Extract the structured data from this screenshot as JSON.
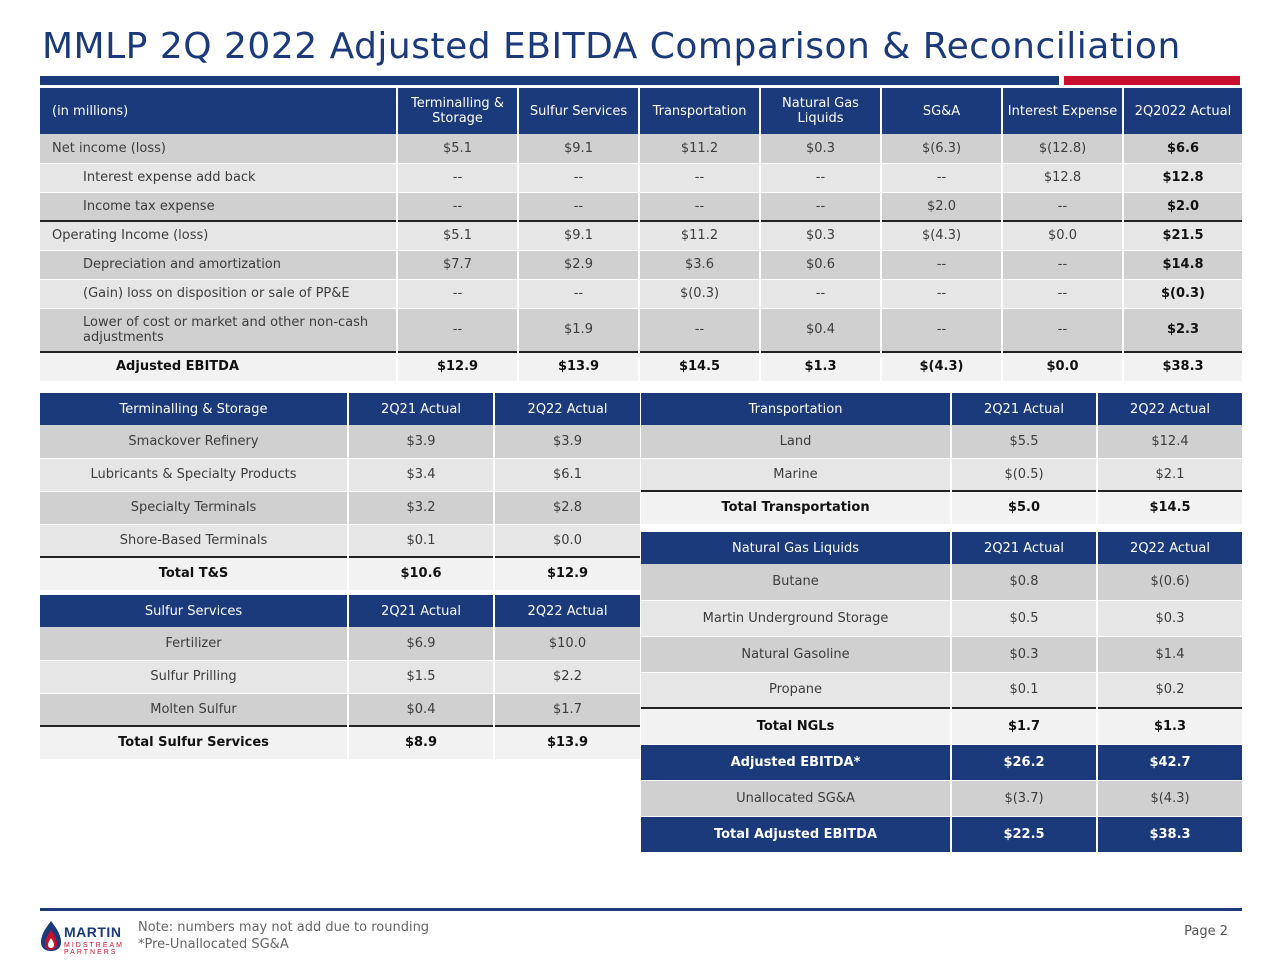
{
  "title": "MMLP 2Q 2022 Adjusted EBITDA Comparison & Reconciliation",
  "main": {
    "headers": [
      "(in millions)",
      "Terminalling & Storage",
      "Sulfur Services",
      "Transportation",
      "Natural Gas Liquids",
      "SG&A",
      "Interest Expense",
      "2Q2022 Actual"
    ],
    "rows": [
      {
        "label": "Net income (loss)",
        "cells": [
          "$5.1",
          "$9.1",
          "$11.2",
          "$0.3",
          "$(6.3)",
          "$(12.8)",
          "$6.6"
        ]
      },
      {
        "label": "Interest expense add back",
        "cells": [
          "--",
          "--",
          "--",
          "--",
          "--",
          "$12.8",
          "$12.8"
        ]
      },
      {
        "label": "Income tax expense",
        "cells": [
          "--",
          "--",
          "--",
          "--",
          "$2.0",
          "--",
          "$2.0"
        ]
      },
      {
        "label": "Operating Income (loss)",
        "cells": [
          "$5.1",
          "$9.1",
          "$11.2",
          "$0.3",
          "$(4.3)",
          "$0.0",
          "$21.5"
        ]
      },
      {
        "label": "Depreciation and amortization",
        "cells": [
          "$7.7",
          "$2.9",
          "$3.6",
          "$0.6",
          "--",
          "--",
          "$14.8"
        ]
      },
      {
        "label": "(Gain) loss on disposition or sale of PP&E",
        "cells": [
          "--",
          "--",
          "$(0.3)",
          "--",
          "--",
          "--",
          "$(0.3)"
        ]
      },
      {
        "label": "Lower of cost or market and other non-cash adjustments",
        "cells": [
          "--",
          "$1.9",
          "--",
          "$0.4",
          "--",
          "--",
          "$2.3"
        ]
      },
      {
        "label": "Adjusted EBITDA",
        "cells": [
          "$12.9",
          "$13.9",
          "$14.5",
          "$1.3",
          "$(4.3)",
          "$0.0",
          "$38.3"
        ]
      }
    ]
  },
  "ts": {
    "headers": [
      "Terminalling & Storage",
      "2Q21 Actual",
      "2Q22 Actual"
    ],
    "rows": [
      [
        "Smackover Refinery",
        "$3.9",
        "$3.9"
      ],
      [
        "Lubricants & Specialty Products",
        "$3.4",
        "$6.1"
      ],
      [
        "Specialty Terminals",
        "$3.2",
        "$2.8"
      ],
      [
        "Shore-Based Terminals",
        "$0.1",
        "$0.0"
      ]
    ],
    "total": [
      "Total T&S",
      "$10.6",
      "$12.9"
    ]
  },
  "ss": {
    "headers": [
      "Sulfur Services",
      "2Q21 Actual",
      "2Q22 Actual"
    ],
    "rows": [
      [
        "Fertilizer",
        "$6.9",
        "$10.0"
      ],
      [
        "Sulfur Prilling",
        "$1.5",
        "$2.2"
      ],
      [
        "Molten Sulfur",
        "$0.4",
        "$1.7"
      ]
    ],
    "total": [
      "Total Sulfur Services",
      "$8.9",
      "$13.9"
    ]
  },
  "tr": {
    "headers": [
      "Transportation",
      "2Q21 Actual",
      "2Q22 Actual"
    ],
    "rows": [
      [
        "Land",
        "$5.5",
        "$12.4"
      ],
      [
        "Marine",
        "$(0.5)",
        "$2.1"
      ]
    ],
    "total": [
      "Total Transportation",
      "$5.0",
      "$14.5"
    ]
  },
  "ngl": {
    "headers": [
      "Natural Gas Liquids",
      "2Q21 Actual",
      "2Q22 Actual"
    ],
    "rows": [
      [
        "Butane",
        "$0.8",
        "$(0.6)"
      ],
      [
        "Martin Underground Storage",
        "$0.5",
        "$0.3"
      ],
      [
        "Natural Gasoline",
        "$0.3",
        "$1.4"
      ],
      [
        "Propane",
        "$0.1",
        "$0.2"
      ]
    ],
    "total": [
      "Total NGLs",
      "$1.7",
      "$1.3"
    ],
    "adjusted": [
      "Adjusted EBITDA*",
      "$26.2",
      "$42.7"
    ],
    "unallocated": [
      "Unallocated SG&A",
      "$(3.7)",
      "$(4.3)"
    ],
    "grand_total": [
      "Total Adjusted EBITDA",
      "$22.5",
      "$38.3"
    ]
  },
  "footer": {
    "logo_text": "MARTIN",
    "logo_sub": "MIDSTREAM PARTNERS",
    "note1": "Note: numbers may not add due to rounding",
    "note2": "*Pre-Unallocated SG&A",
    "page": "Page 2"
  },
  "colors": {
    "navy": "#1a3a7c",
    "red": "#c8102e"
  }
}
